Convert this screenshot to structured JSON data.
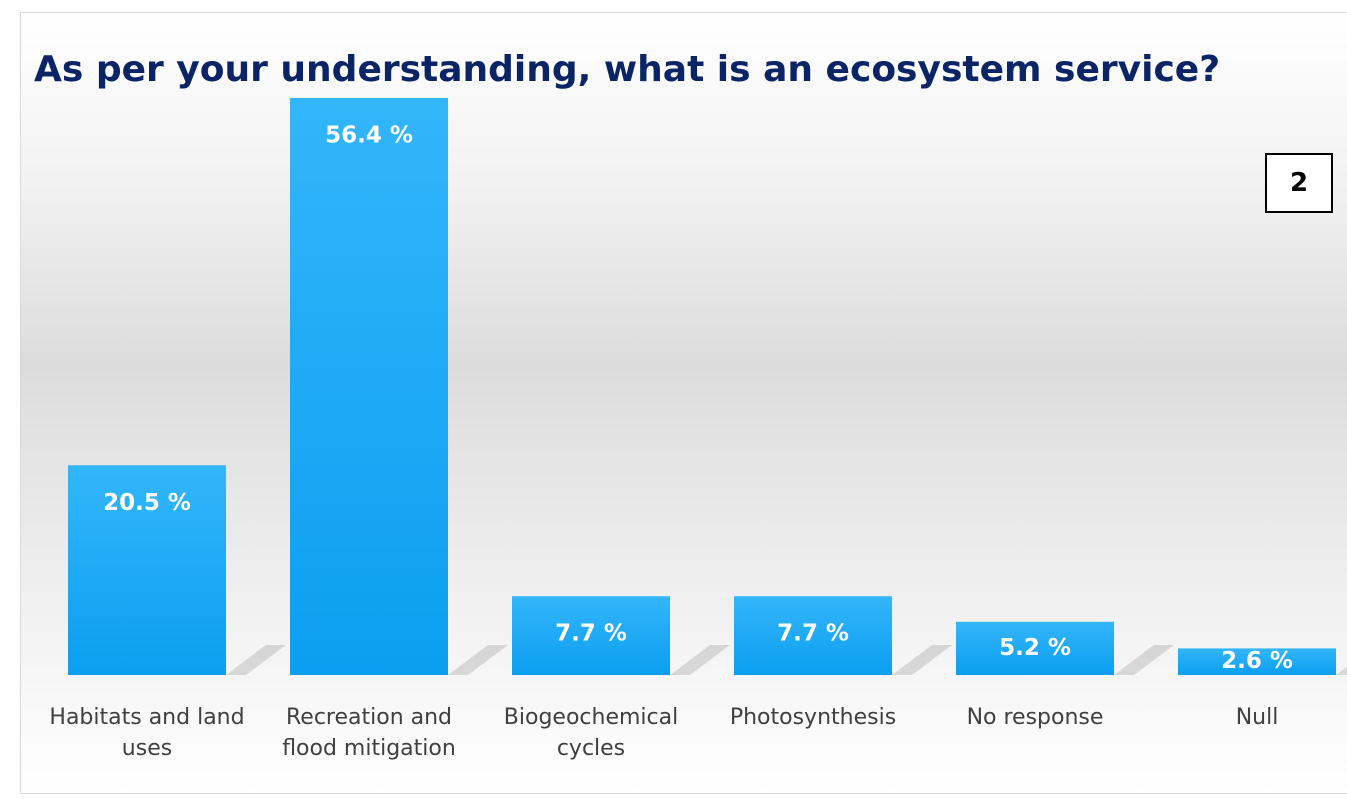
{
  "chart_data": {
    "type": "bar",
    "title": "As per your understanding, what is an ecosystem service?",
    "annotations": [
      "2"
    ],
    "categories": [
      "Habitats and land uses",
      "Recreation and flood mitigation",
      "Biogeochemical cycles",
      "Photosynthesis",
      "No response",
      "Null"
    ],
    "values": [
      20.5,
      56.4,
      7.7,
      7.7,
      5.2,
      2.6
    ],
    "value_labels": [
      "20.5 %",
      "56.4 %",
      "7.7 %",
      "7.7 %",
      "5.2 %",
      "2.6 %"
    ],
    "color": "#1aa8f5"
  }
}
